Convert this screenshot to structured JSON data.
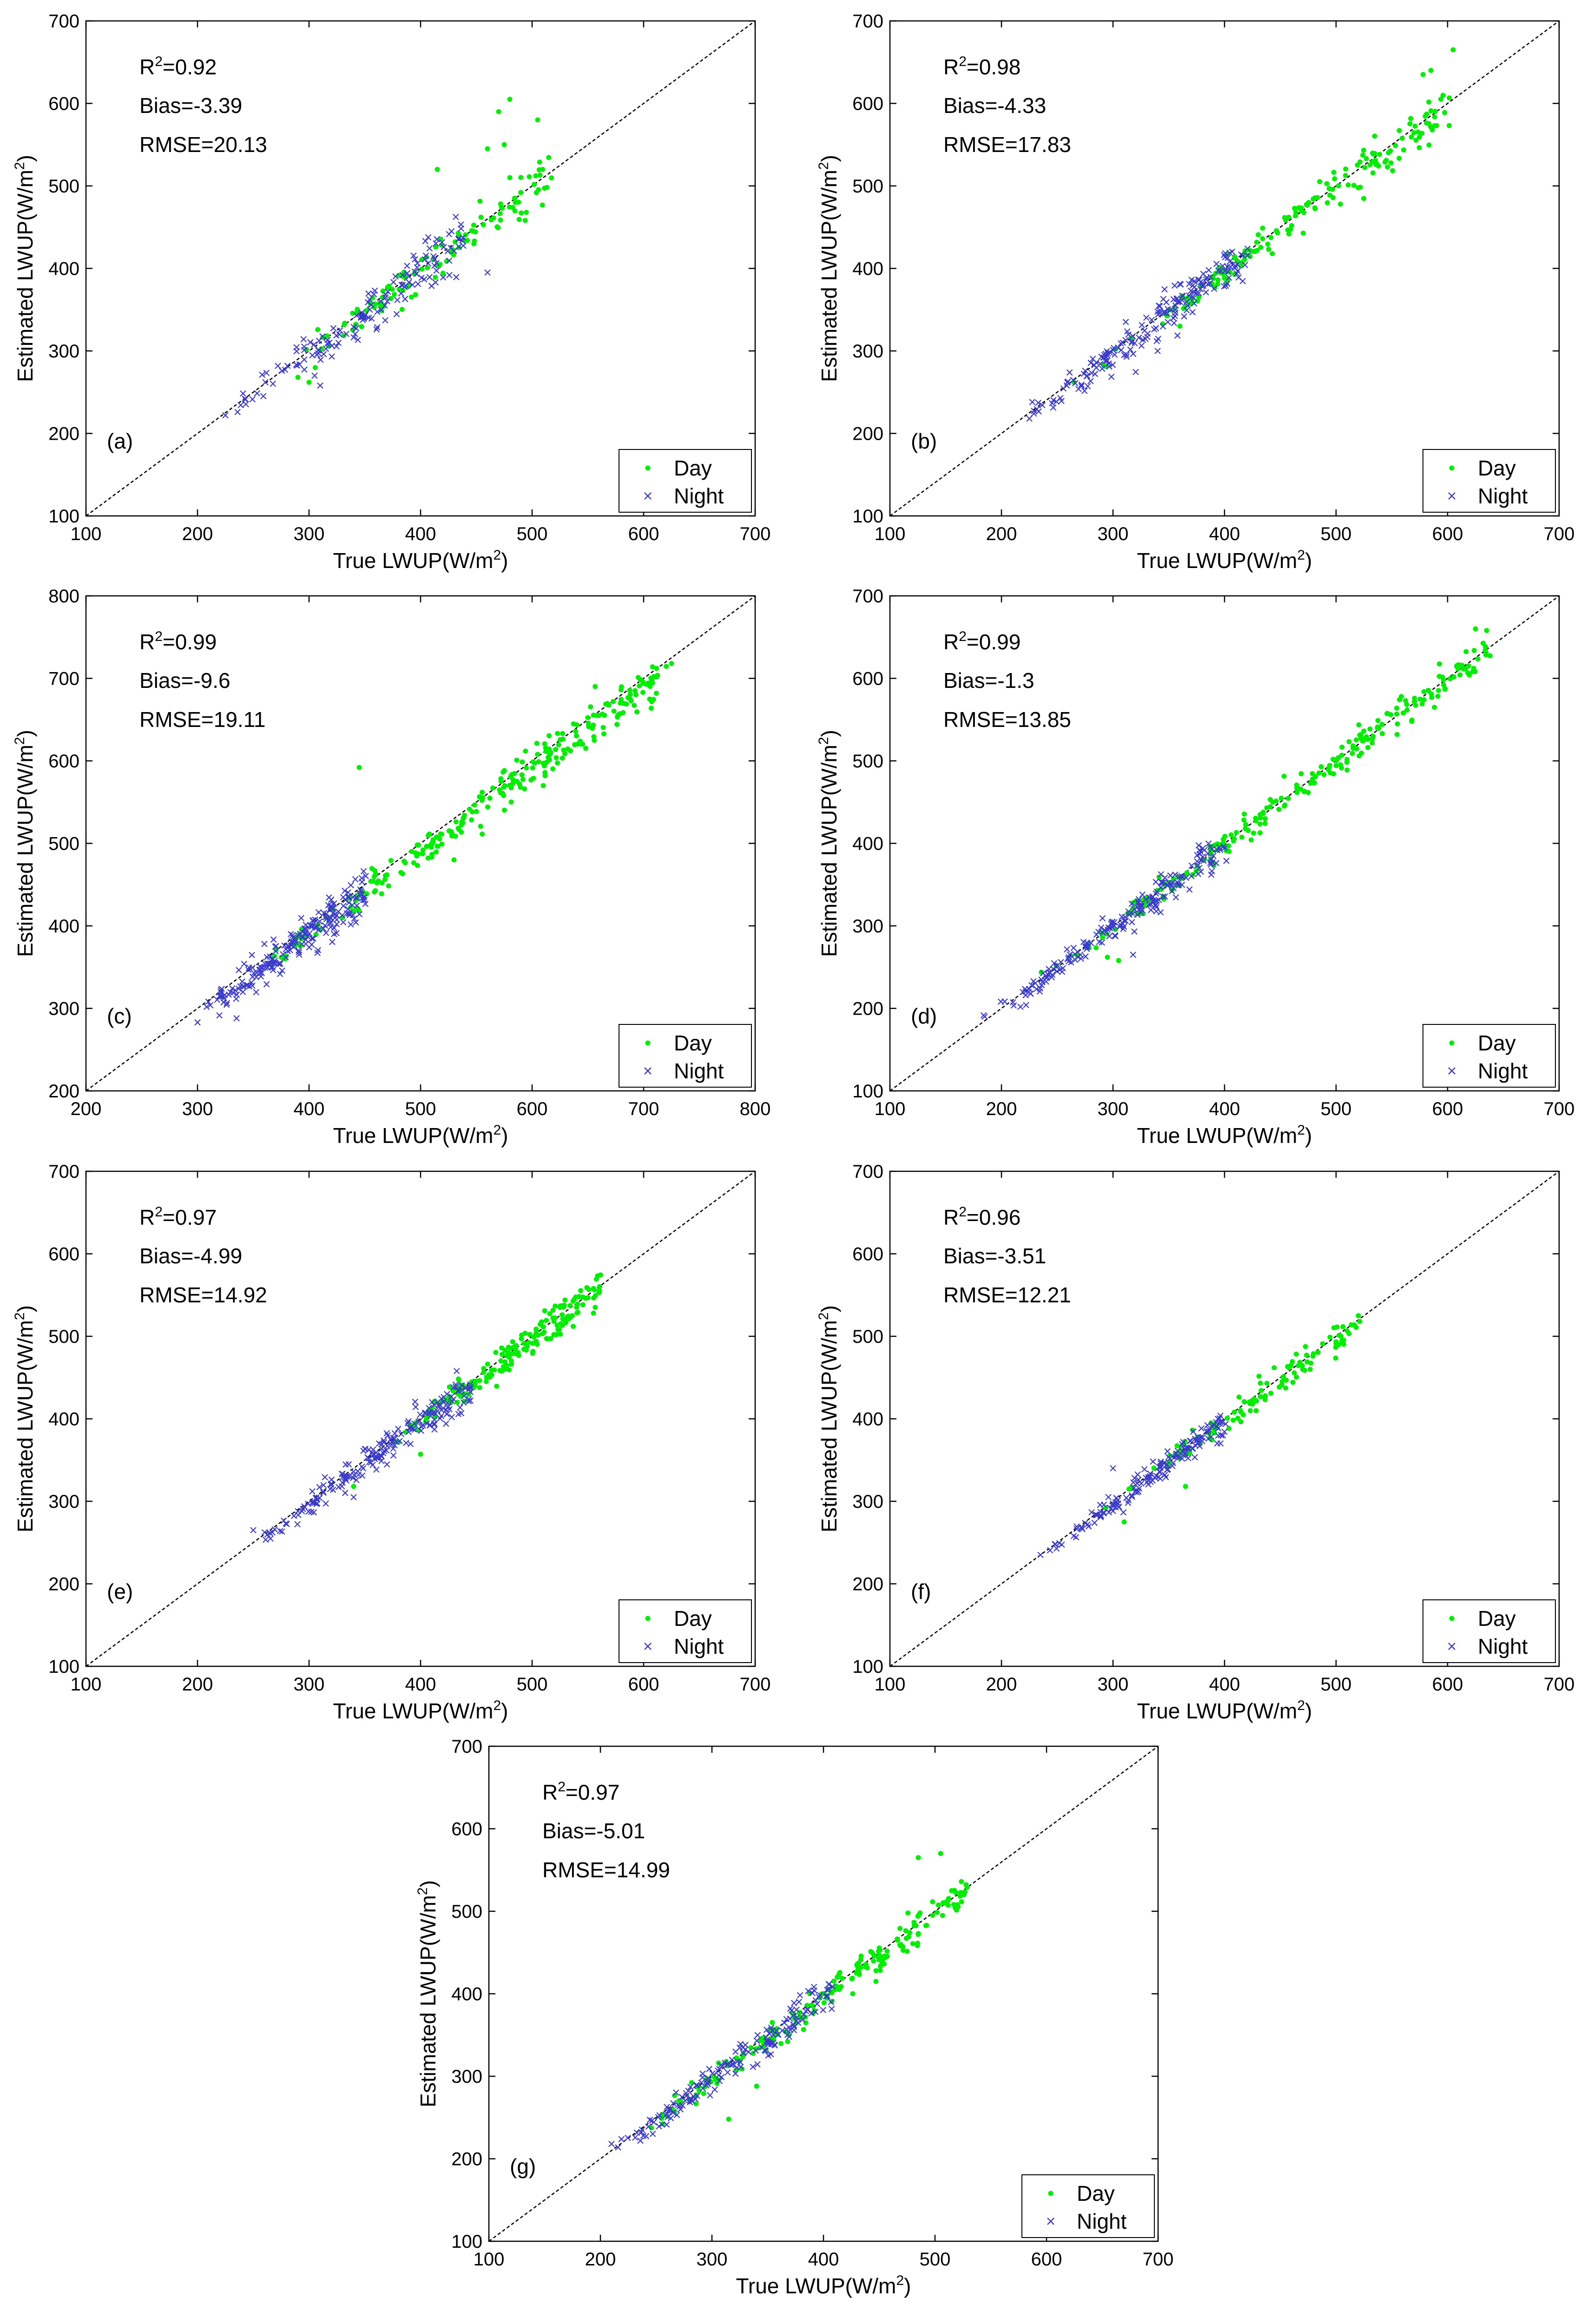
{
  "figure": {
    "colors": {
      "day": "#00ee00",
      "night": "#3a3acc",
      "axis": "#000000",
      "identity_line": "#000000"
    }
  },
  "chart_data": [
    {
      "type": "scatter",
      "panel": "(a)",
      "xlabel": "True LWUP(W/m",
      "ylabel": "Estimated LWUP(W/m",
      "unit_sup": "2",
      "unit_close": ")",
      "xlim": [
        100,
        700
      ],
      "ylim": [
        100,
        700
      ],
      "ticks": [
        100,
        200,
        300,
        400,
        500,
        600,
        700
      ],
      "r2_label": "R",
      "r2_sup": "2",
      "r2_value": "=0.92",
      "bias": "Bias=-3.39",
      "rmse": "RMSE=20.13",
      "legend": [
        "Day",
        "Night"
      ],
      "legend_position": "bottom-right",
      "series": [
        {
          "name": "Day",
          "marker": "dot",
          "cluster": {
            "x_range": [
              280,
              515
            ],
            "r2": 0.92,
            "bias": -3.39,
            "rmse": 20.13,
            "count": 115
          },
          "extra_points": [
            [
              480,
              605
            ],
            [
              470,
              590
            ],
            [
              475,
              550
            ],
            [
              460,
              545
            ],
            [
              505,
              580
            ],
            [
              415,
              520
            ],
            [
              480,
              510
            ],
            [
              300,
              262
            ],
            [
              290,
              268
            ]
          ]
        },
        {
          "name": "Night",
          "marker": "x",
          "cluster": {
            "x_range": [
              220,
              440
            ],
            "r2": 0.92,
            "bias": -3.39,
            "rmse": 20.13,
            "count": 150
          },
          "extra_points": [
            [
              460,
              395
            ],
            [
              310,
              258
            ],
            [
              305,
              270
            ],
            [
              225,
              222
            ]
          ]
        }
      ]
    },
    {
      "type": "scatter",
      "panel": "(b)",
      "xlabel": "True LWUP(W/m",
      "ylabel": "Estimated LWUP(W/m",
      "unit_sup": "2",
      "unit_close": ")",
      "xlim": [
        100,
        700
      ],
      "ylim": [
        100,
        700
      ],
      "ticks": [
        100,
        200,
        300,
        400,
        500,
        600,
        700
      ],
      "r2_label": "R",
      "r2_sup": "2",
      "r2_value": "=0.98",
      "bias": "Bias=-4.33",
      "rmse": "RMSE=17.83",
      "legend": [
        "Day",
        "Night"
      ],
      "legend_position": "bottom-right",
      "series": [
        {
          "name": "Day",
          "marker": "dot",
          "cluster": {
            "x_range": [
              270,
              600
            ],
            "r2": 0.98,
            "bias": -4.33,
            "rmse": 17.83,
            "count": 170
          },
          "extra_points": [
            [
              605,
              665
            ],
            [
              585,
              640
            ],
            [
              578,
              635
            ],
            [
              265,
              262
            ],
            [
              360,
              330
            ]
          ]
        },
        {
          "name": "Night",
          "marker": "x",
          "cluster": {
            "x_range": [
              220,
              420
            ],
            "r2": 0.98,
            "bias": -4.33,
            "rmse": 17.83,
            "count": 190
          },
          "extra_points": [
            [
              225,
              218
            ],
            [
              340,
              300
            ]
          ]
        }
      ]
    },
    {
      "type": "scatter",
      "panel": "(c)",
      "xlabel": "True LWUP(W/m",
      "ylabel": "Estimated LWUP(W/m",
      "unit_sup": "2",
      "unit_close": ")",
      "xlim": [
        200,
        800
      ],
      "ylim": [
        200,
        800
      ],
      "ticks": [
        200,
        300,
        400,
        500,
        600,
        700,
        800
      ],
      "r2_label": "R",
      "r2_sup": "2",
      "r2_value": "=0.99",
      "bias": "Bias=-9.6",
      "rmse": "RMSE=19.11",
      "legend": [
        "Day",
        "Night"
      ],
      "legend_position": "bottom-right",
      "series": [
        {
          "name": "Day",
          "marker": "dot",
          "cluster": {
            "x_range": [
              360,
              720
            ],
            "r2": 0.99,
            "bias": -9.6,
            "rmse": 19.11,
            "count": 260
          },
          "extra_points": [
            [
              445,
              592
            ],
            [
              725,
              718
            ],
            [
              530,
              480
            ],
            [
              610,
              570
            ]
          ]
        },
        {
          "name": "Night",
          "marker": "x",
          "cluster": {
            "x_range": [
              295,
              450
            ],
            "r2": 0.99,
            "bias": -9.6,
            "rmse": 19.11,
            "count": 220
          },
          "extra_points": [
            [
              335,
              288
            ],
            [
              300,
              283
            ]
          ]
        }
      ]
    },
    {
      "type": "scatter",
      "panel": "(d)",
      "xlabel": "True LWUP(W/m",
      "ylabel": "Estimated LWUP(W/m",
      "unit_sup": "2",
      "unit_close": ")",
      "xlim": [
        100,
        700
      ],
      "ylim": [
        100,
        700
      ],
      "ticks": [
        100,
        200,
        300,
        400,
        500,
        600,
        700
      ],
      "r2_label": "R",
      "r2_sup": "2",
      "r2_value": "=0.99",
      "bias": "Bias=-1.3",
      "rmse": "RMSE=13.85",
      "legend": [
        "Day",
        "Night"
      ],
      "legend_position": "bottom-right",
      "series": [
        {
          "name": "Day",
          "marker": "dot",
          "cluster": {
            "x_range": [
              220,
              640
            ],
            "r2": 0.99,
            "bias": -1.3,
            "rmse": 13.85,
            "count": 230
          },
          "extra_points": [
            [
              635,
              658
            ],
            [
              625,
              660
            ],
            [
              305,
              258
            ],
            [
              295,
              262
            ]
          ]
        },
        {
          "name": "Night",
          "marker": "x",
          "cluster": {
            "x_range": [
              185,
              400
            ],
            "r2": 0.99,
            "bias": -1.3,
            "rmse": 13.85,
            "count": 200
          },
          "extra_points": [
            [
              185,
              190
            ],
            [
              318,
              265
            ]
          ]
        }
      ]
    },
    {
      "type": "scatter",
      "panel": "(e)",
      "xlabel": "True LWUP(W/m",
      "ylabel": "Estimated LWUP(W/m",
      "unit_sup": "2",
      "unit_close": ")",
      "xlim": [
        100,
        700
      ],
      "ylim": [
        100,
        700
      ],
      "ticks": [
        100,
        200,
        300,
        400,
        500,
        600,
        700
      ],
      "r2_label": "R",
      "r2_sup": "2",
      "r2_value": "=0.97",
      "bias": "Bias=-4.99",
      "rmse": "RMSE=14.92",
      "legend": [
        "Day",
        "Night"
      ],
      "legend_position": "bottom-right",
      "series": [
        {
          "name": "Day",
          "marker": "dot",
          "cluster": {
            "x_range": [
              370,
              560
            ],
            "r2": 0.97,
            "bias": -4.99,
            "rmse": 14.92,
            "count": 180
          },
          "extra_points": [
            [
              555,
              528
            ],
            [
              400,
              357
            ],
            [
              340,
              318
            ]
          ]
        },
        {
          "name": "Night",
          "marker": "x",
          "cluster": {
            "x_range": [
              250,
              445
            ],
            "r2": 0.97,
            "bias": -4.99,
            "rmse": 14.92,
            "count": 200
          },
          "extra_points": [
            [
              340,
              305
            ],
            [
              250,
              265
            ]
          ]
        }
      ]
    },
    {
      "type": "scatter",
      "panel": "(f)",
      "xlabel": "True LWUP(W/m",
      "ylabel": "Estimated LWUP(W/m",
      "unit_sup": "2",
      "unit_close": ")",
      "xlim": [
        100,
        700
      ],
      "ylim": [
        100,
        700
      ],
      "ticks": [
        100,
        200,
        300,
        400,
        500,
        600,
        700
      ],
      "r2_label": "R",
      "r2_sup": "2",
      "r2_value": "=0.96",
      "bias": "Bias=-3.51",
      "rmse": "RMSE=12.21",
      "legend": [
        "Day",
        "Night"
      ],
      "legend_position": "bottom-right",
      "series": [
        {
          "name": "Day",
          "marker": "dot",
          "cluster": {
            "x_range": [
              275,
              520
            ],
            "r2": 0.96,
            "bias": -3.51,
            "rmse": 12.21,
            "count": 110
          },
          "extra_points": [
            [
              520,
              525
            ],
            [
              365,
              318
            ],
            [
              310,
              275
            ]
          ]
        },
        {
          "name": "Night",
          "marker": "x",
          "cluster": {
            "x_range": [
              235,
              400
            ],
            "r2": 0.96,
            "bias": -3.51,
            "rmse": 12.21,
            "count": 160
          },
          "extra_points": [
            [
              235,
              235
            ],
            [
              300,
              340
            ]
          ]
        }
      ]
    },
    {
      "type": "scatter",
      "panel": "(g)",
      "xlabel": "True LWUP(W/m",
      "ylabel": "Estimated LWUP(W/m",
      "unit_sup": "2",
      "unit_close": ")",
      "xlim": [
        100,
        700
      ],
      "ylim": [
        100,
        700
      ],
      "ticks": [
        100,
        200,
        300,
        400,
        500,
        600,
        700
      ],
      "r2_label": "R",
      "r2_sup": "2",
      "r2_value": "=0.97",
      "bias": "Bias=-5.01",
      "rmse": "RMSE=14.99",
      "legend": [
        "Day",
        "Night"
      ],
      "legend_position": "bottom-right",
      "series": [
        {
          "name": "Day",
          "marker": "dot",
          "cluster": {
            "x_range": [
              230,
              530
            ],
            "r2": 0.97,
            "bias": -5.01,
            "rmse": 14.99,
            "count": 200
          },
          "extra_points": [
            [
              485,
              565
            ],
            [
              505,
              570
            ],
            [
              315,
              248
            ],
            [
              340,
              288
            ]
          ]
        },
        {
          "name": "Night",
          "marker": "x",
          "cluster": {
            "x_range": [
              205,
              410
            ],
            "r2": 0.97,
            "bias": -5.01,
            "rmse": 14.99,
            "count": 170
          },
          "extra_points": [
            [
              210,
              218
            ]
          ]
        }
      ]
    }
  ]
}
